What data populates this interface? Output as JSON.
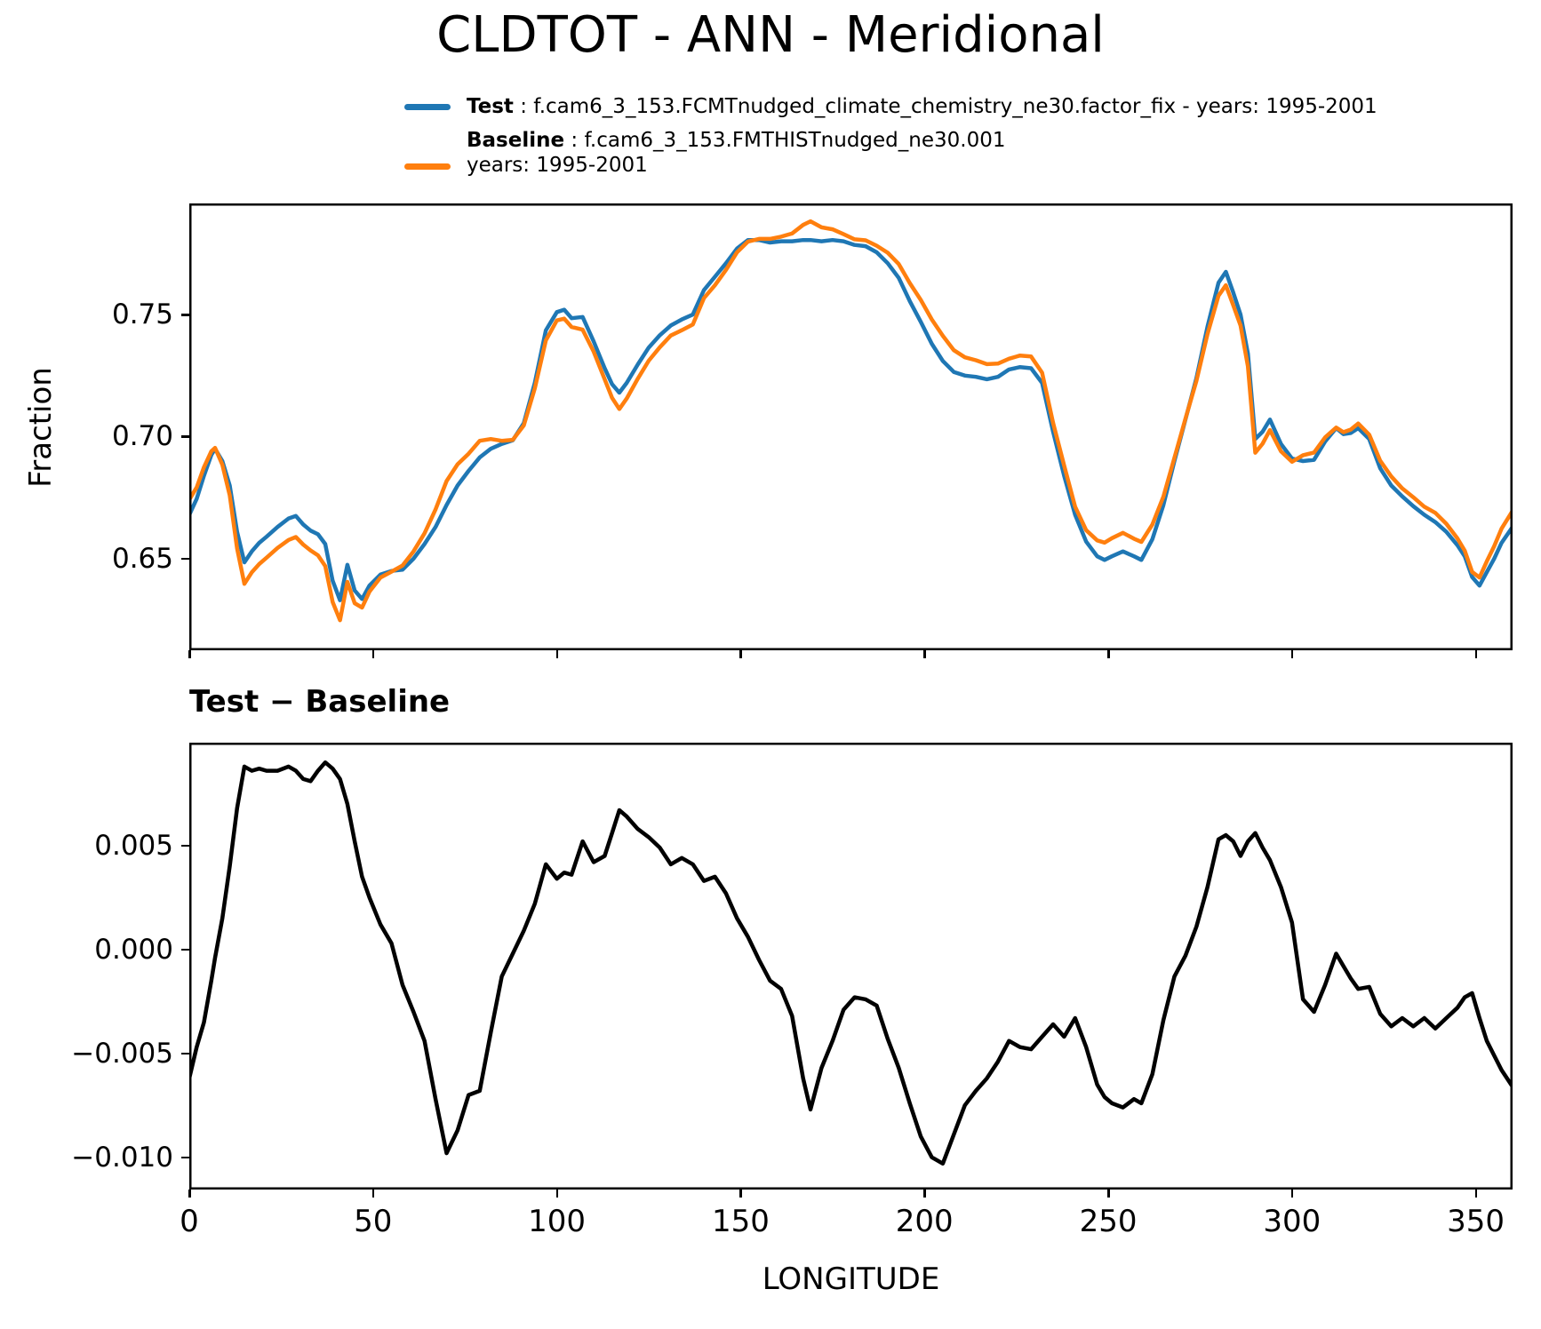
{
  "title": "CLDTOT - ANN - Meridional",
  "legend": {
    "test_label": "Test",
    "test_desc": " : f.cam6_3_153.FCMTnudged_climate_chemistry_ne30.factor_fix - years: 1995-2001",
    "baseline_label": "Baseline",
    "baseline_desc": " : f.cam6_3_153.FMTHISTnudged_ne30.001",
    "baseline_years": "years: 1995-2001",
    "test_color": "#1f77b4",
    "baseline_color": "#ff7f0e"
  },
  "chart_data": [
    {
      "type": "line",
      "title": "CLDTOT - ANN - Meridional",
      "xlabel": "",
      "ylabel": "Fraction",
      "xlim": [
        0,
        360
      ],
      "ylim": [
        0.6125,
        0.7955
      ],
      "grid": false,
      "legend_position": "top-left-above",
      "xticks": [
        0,
        50,
        100,
        150,
        200,
        250,
        300,
        350
      ],
      "yticks": [
        0.65,
        0.7,
        0.75
      ],
      "ytick_labels": [
        "0.65",
        "0.70",
        "0.75"
      ],
      "x": [
        0,
        2,
        4,
        6,
        7,
        9,
        11,
        13,
        15,
        17,
        19,
        21,
        24,
        27,
        29,
        31,
        33,
        35,
        37,
        39,
        41,
        43,
        45,
        47,
        49,
        52,
        55,
        58,
        61,
        64,
        67,
        70,
        73,
        76,
        79,
        82,
        85,
        88,
        91,
        94,
        97,
        100,
        102,
        104,
        107,
        110,
        113,
        115,
        117,
        119,
        122,
        125,
        128,
        131,
        134,
        137,
        140,
        143,
        146,
        149,
        152,
        155,
        158,
        161,
        164,
        167,
        169,
        172,
        175,
        178,
        181,
        184,
        187,
        190,
        193,
        196,
        199,
        202,
        205,
        208,
        211,
        214,
        217,
        220,
        223,
        226,
        229,
        232,
        235,
        238,
        241,
        244,
        247,
        249,
        251,
        254,
        257,
        259,
        262,
        265,
        268,
        271,
        274,
        277,
        280,
        282,
        284,
        286,
        288,
        290,
        292,
        294,
        297,
        300,
        303,
        306,
        309,
        312,
        314,
        316,
        318,
        321,
        324,
        327,
        330,
        333,
        336,
        339,
        342,
        345,
        347,
        349,
        351,
        353,
        355,
        357,
        360
      ],
      "series": [
        {
          "name": "Test",
          "color": "#1f77b4",
          "values": [
            0.668,
            0.6745,
            0.684,
            0.6925,
            0.695,
            0.69,
            0.68,
            0.661,
            0.6485,
            0.653,
            0.6565,
            0.659,
            0.663,
            0.6665,
            0.6675,
            0.664,
            0.6615,
            0.66,
            0.656,
            0.641,
            0.633,
            0.6475,
            0.637,
            0.6335,
            0.639,
            0.6435,
            0.645,
            0.6455,
            0.65,
            0.656,
            0.663,
            0.672,
            0.68,
            0.686,
            0.6915,
            0.695,
            0.697,
            0.6985,
            0.7055,
            0.722,
            0.7435,
            0.751,
            0.752,
            0.7485,
            0.749,
            0.739,
            0.728,
            0.7215,
            0.718,
            0.722,
            0.7295,
            0.7365,
            0.7415,
            0.7455,
            0.748,
            0.75,
            0.76,
            0.7655,
            0.771,
            0.777,
            0.7805,
            0.7805,
            0.7795,
            0.78,
            0.78,
            0.7805,
            0.7805,
            0.78,
            0.7805,
            0.78,
            0.7785,
            0.778,
            0.7755,
            0.771,
            0.765,
            0.7555,
            0.747,
            0.738,
            0.731,
            0.7265,
            0.725,
            0.7245,
            0.7235,
            0.7245,
            0.7275,
            0.7285,
            0.728,
            0.722,
            0.702,
            0.684,
            0.668,
            0.657,
            0.651,
            0.6495,
            0.651,
            0.653,
            0.651,
            0.6495,
            0.658,
            0.672,
            0.69,
            0.707,
            0.724,
            0.745,
            0.763,
            0.7675,
            0.759,
            0.75,
            0.734,
            0.699,
            0.702,
            0.707,
            0.697,
            0.691,
            0.69,
            0.6905,
            0.698,
            0.7035,
            0.701,
            0.7015,
            0.7035,
            0.699,
            0.687,
            0.68,
            0.6755,
            0.6715,
            0.668,
            0.665,
            0.661,
            0.6555,
            0.651,
            0.6425,
            0.639,
            0.6445,
            0.65,
            0.6565,
            0.663
          ]
        },
        {
          "name": "Baseline",
          "color": "#ff7f0e",
          "values": [
            0.6742,
            0.6792,
            0.6875,
            0.694,
            0.6954,
            0.6885,
            0.676,
            0.6542,
            0.6397,
            0.6444,
            0.6478,
            0.6504,
            0.6544,
            0.6577,
            0.6589,
            0.6558,
            0.6534,
            0.6514,
            0.647,
            0.6323,
            0.6248,
            0.6405,
            0.6318,
            0.63,
            0.6365,
            0.6423,
            0.6447,
            0.6472,
            0.653,
            0.6604,
            0.6702,
            0.6818,
            0.6887,
            0.693,
            0.6983,
            0.699,
            0.6983,
            0.6987,
            0.7046,
            0.7198,
            0.7394,
            0.7476,
            0.7483,
            0.7449,
            0.7438,
            0.7348,
            0.7235,
            0.7159,
            0.7113,
            0.7156,
            0.7237,
            0.7311,
            0.7366,
            0.7414,
            0.7436,
            0.7459,
            0.7567,
            0.762,
            0.7683,
            0.7755,
            0.7799,
            0.781,
            0.781,
            0.7819,
            0.7832,
            0.7867,
            0.7882,
            0.7857,
            0.7849,
            0.7829,
            0.7808,
            0.7804,
            0.7782,
            0.7753,
            0.7707,
            0.7629,
            0.756,
            0.748,
            0.7413,
            0.7354,
            0.7325,
            0.7313,
            0.7297,
            0.7299,
            0.7319,
            0.7332,
            0.7328,
            0.7262,
            0.7056,
            0.6882,
            0.6713,
            0.6617,
            0.6575,
            0.6566,
            0.6584,
            0.6606,
            0.6582,
            0.6569,
            0.664,
            0.6754,
            0.6913,
            0.7073,
            0.7229,
            0.742,
            0.7577,
            0.762,
            0.7538,
            0.7455,
            0.7288,
            0.6934,
            0.6971,
            0.7027,
            0.694,
            0.6897,
            0.6924,
            0.6935,
            0.6997,
            0.7037,
            0.7018,
            0.7029,
            0.7054,
            0.7008,
            0.6901,
            0.6837,
            0.6788,
            0.6752,
            0.6713,
            0.6688,
            0.6643,
            0.6583,
            0.6533,
            0.6446,
            0.6423,
            0.6489,
            0.6551,
            0.6623,
            0.6696
          ]
        }
      ]
    },
    {
      "type": "line",
      "title": "Test − Baseline",
      "xlabel": "LONGITUDE",
      "ylabel": "",
      "xlim": [
        0,
        360
      ],
      "ylim": [
        -0.01155,
        0.00995
      ],
      "grid": false,
      "xticks": [
        0,
        50,
        100,
        150,
        200,
        250,
        300,
        350
      ],
      "xtick_labels": [
        "0",
        "50",
        "100",
        "150",
        "200",
        "250",
        "300",
        "350"
      ],
      "yticks": [
        0.005,
        0.0,
        -0.005,
        -0.01
      ],
      "ytick_labels": [
        "0.005",
        "0.000",
        "−0.005",
        "−0.010"
      ],
      "x": [
        0,
        2,
        4,
        6,
        7,
        9,
        11,
        13,
        15,
        17,
        19,
        21,
        24,
        27,
        29,
        31,
        33,
        35,
        37,
        39,
        41,
        43,
        45,
        47,
        49,
        52,
        55,
        58,
        61,
        64,
        67,
        70,
        73,
        76,
        79,
        82,
        85,
        88,
        91,
        94,
        97,
        100,
        102,
        104,
        107,
        110,
        113,
        115,
        117,
        119,
        122,
        125,
        128,
        131,
        134,
        137,
        140,
        143,
        146,
        149,
        152,
        155,
        158,
        161,
        164,
        167,
        169,
        172,
        175,
        178,
        181,
        184,
        187,
        190,
        193,
        196,
        199,
        202,
        205,
        208,
        211,
        214,
        217,
        220,
        223,
        226,
        229,
        232,
        235,
        238,
        241,
        244,
        247,
        249,
        251,
        254,
        257,
        259,
        262,
        265,
        268,
        271,
        274,
        277,
        280,
        282,
        284,
        286,
        288,
        290,
        292,
        294,
        297,
        300,
        303,
        306,
        309,
        312,
        314,
        316,
        318,
        321,
        324,
        327,
        330,
        333,
        336,
        339,
        342,
        345,
        347,
        349,
        351,
        353,
        355,
        357,
        360
      ],
      "series": [
        {
          "name": "Test − Baseline",
          "color": "#000000",
          "values": [
            -0.0062,
            -0.0047,
            -0.0035,
            -0.0015,
            -0.0004,
            0.0015,
            0.004,
            0.0068,
            0.0088,
            0.0086,
            0.0087,
            0.0086,
            0.0086,
            0.0088,
            0.0086,
            0.0082,
            0.0081,
            0.0086,
            0.009,
            0.0087,
            0.0082,
            0.007,
            0.0052,
            0.0035,
            0.0025,
            0.0012,
            0.0003,
            -0.0017,
            -0.003,
            -0.0044,
            -0.0072,
            -0.0098,
            -0.0087,
            -0.007,
            -0.0068,
            -0.004,
            -0.0013,
            -0.0002,
            0.0009,
            0.0022,
            0.0041,
            0.0034,
            0.0037,
            0.0036,
            0.0052,
            0.0042,
            0.0045,
            0.0056,
            0.0067,
            0.0064,
            0.0058,
            0.0054,
            0.0049,
            0.0041,
            0.0044,
            0.0041,
            0.0033,
            0.0035,
            0.0027,
            0.0015,
            0.0006,
            -0.0005,
            -0.0015,
            -0.0019,
            -0.0032,
            -0.0062,
            -0.0077,
            -0.0057,
            -0.0044,
            -0.0029,
            -0.0023,
            -0.0024,
            -0.0027,
            -0.0043,
            -0.0057,
            -0.0074,
            -0.009,
            -0.01,
            -0.0103,
            -0.0089,
            -0.0075,
            -0.0068,
            -0.0062,
            -0.0054,
            -0.0044,
            -0.0047,
            -0.0048,
            -0.0042,
            -0.0036,
            -0.0042,
            -0.0033,
            -0.0047,
            -0.0065,
            -0.0071,
            -0.0074,
            -0.0076,
            -0.0072,
            -0.0074,
            -0.006,
            -0.0034,
            -0.0013,
            -0.0003,
            0.0011,
            0.003,
            0.0053,
            0.0055,
            0.0052,
            0.0045,
            0.0052,
            0.0056,
            0.0049,
            0.0043,
            0.003,
            0.0013,
            -0.0024,
            -0.003,
            -0.0017,
            -0.0002,
            -0.0008,
            -0.0014,
            -0.0019,
            -0.0018,
            -0.0031,
            -0.0037,
            -0.0033,
            -0.0037,
            -0.0033,
            -0.0038,
            -0.0033,
            -0.0028,
            -0.0023,
            -0.0021,
            -0.0033,
            -0.0044,
            -0.0051,
            -0.0058,
            -0.0066
          ]
        }
      ]
    }
  ]
}
